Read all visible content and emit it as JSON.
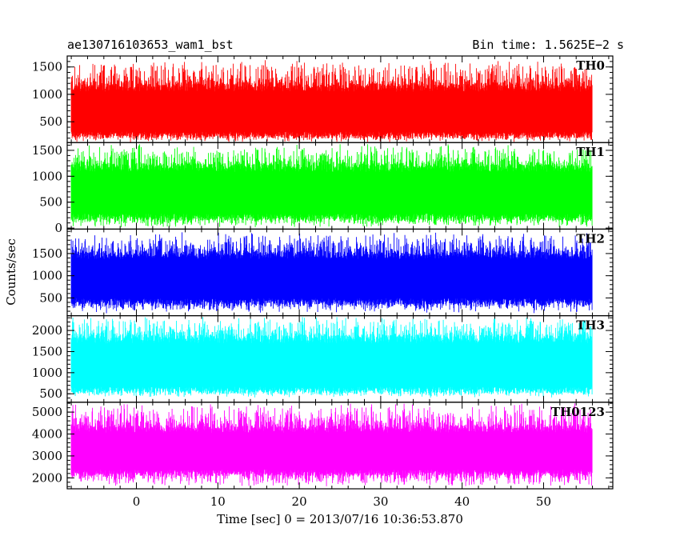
{
  "header": {
    "obs_title": "ae130716103653_wam1_bst",
    "bin_time": "Bin time: 1.5625E−2 s"
  },
  "chart_data": {
    "type": "line",
    "title": "ae130716103653_wam1_bst",
    "subtitle": "Bin time: 1.5625E−2 s",
    "xlabel": "Time [sec] 0 = 2013/07/16 10:36:53.870",
    "ylabel": "Counts/sec",
    "xlim": [
      -8.5,
      58.5
    ],
    "data_xrange": [
      -8.0,
      56.0
    ],
    "x_ticks": [
      0,
      10,
      20,
      30,
      40,
      50
    ],
    "grid": false,
    "legend": "none",
    "panels": [
      {
        "name": "TH0",
        "color": "#ff0000",
        "ylim": [
          120,
          1700
        ],
        "y_ticks": [
          500,
          1000,
          1500
        ],
        "typical_low": 200,
        "typical_high": 1200,
        "min": 120,
        "max": 1650
      },
      {
        "name": "TH1",
        "color": "#00ff00",
        "ylim": [
          -20,
          1650
        ],
        "y_ticks": [
          0,
          500,
          1000,
          1500
        ],
        "typical_low": 150,
        "typical_high": 1250,
        "min": 0,
        "max": 1640
      },
      {
        "name": "TH2",
        "color": "#0000ff",
        "ylim": [
          100,
          2050
        ],
        "y_ticks": [
          500,
          1000,
          1500
        ],
        "typical_low": 350,
        "typical_high": 1550,
        "min": 150,
        "max": 2000
      },
      {
        "name": "TH3",
        "color": "#00ffff",
        "ylim": [
          300,
          2350
        ],
        "y_ticks": [
          500,
          1000,
          1500,
          2000
        ],
        "typical_low": 500,
        "typical_high": 1900,
        "min": 400,
        "max": 2350
      },
      {
        "name": "TH0123",
        "color": "#ff00ff",
        "ylim": [
          1500,
          5450
        ],
        "y_ticks": [
          2000,
          3000,
          4000,
          5000
        ],
        "typical_low": 2100,
        "typical_high": 4400,
        "min": 1600,
        "max": 5450
      }
    ]
  }
}
